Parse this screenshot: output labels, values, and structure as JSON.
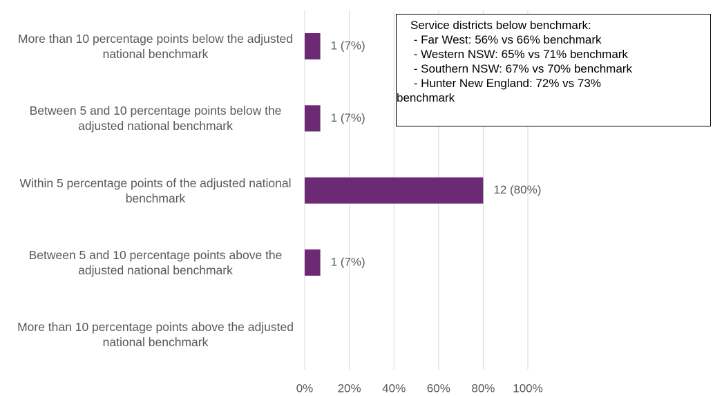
{
  "chart_data": {
    "type": "bar",
    "orientation": "horizontal",
    "categories": [
      "More than 10 percentage points below the adjusted national benchmark",
      "Between 5 and 10 percentage points below the adjusted national benchmark",
      "Within 5 percentage points of the adjusted national benchmark",
      "Between 5 and 10 percentage points above the adjusted national benchmark",
      "More than 10 percentage points above the adjusted national benchmark"
    ],
    "values": [
      7,
      7,
      80,
      7,
      null
    ],
    "value_labels": [
      "1 (7%)",
      "1 (7%)",
      "12 (80%)",
      "1 (7%)",
      null
    ],
    "color": "#6b2a73",
    "xlim": [
      0,
      100
    ],
    "xticks": [
      {
        "value": 0,
        "label": "0%"
      },
      {
        "value": 20,
        "label": "20%"
      },
      {
        "value": 40,
        "label": "40%"
      },
      {
        "value": 60,
        "label": "60%"
      },
      {
        "value": 80,
        "label": "80%"
      },
      {
        "value": 100,
        "label": "100%"
      }
    ],
    "grid": true,
    "annotation": [
      "Service districts below benchmark:",
      " - Far West: 56% vs 66% benchmark",
      " - Western NSW: 65% vs 71% benchmark",
      " - Southern NSW: 67% vs 70% benchmark",
      " - Hunter New England: 72% vs 73%",
      "benchmark"
    ]
  }
}
